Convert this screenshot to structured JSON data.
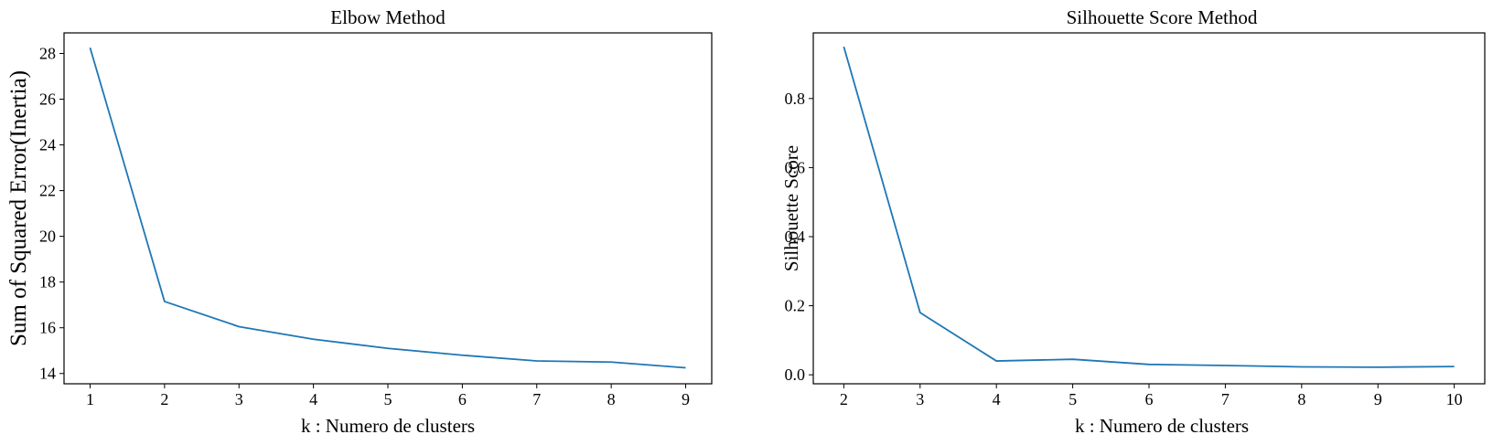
{
  "colors": {
    "line": "#1f77b4",
    "axes": "#000000",
    "background": "#ffffff"
  },
  "chart_data": [
    {
      "type": "line",
      "title": "Elbow Method",
      "xlabel": "k : Numero de clusters",
      "ylabel": "Sum of Squared Error(Inertia)",
      "xlim": [
        0.65,
        9.35
      ],
      "ylim": [
        13.55,
        28.9
      ],
      "xticks": [
        "1",
        "2",
        "3",
        "4",
        "5",
        "6",
        "7",
        "8",
        "9"
      ],
      "yticks": [
        "14",
        "16",
        "18",
        "20",
        "22",
        "24",
        "26",
        "28"
      ],
      "grid": false,
      "series": [
        {
          "x": [
            1,
            2,
            3,
            4,
            5,
            6,
            7,
            8,
            9
          ],
          "values": [
            28.25,
            17.15,
            16.05,
            15.5,
            15.1,
            14.8,
            14.55,
            14.5,
            14.25
          ]
        }
      ]
    },
    {
      "type": "line",
      "title": "Silhouette Score Method",
      "xlabel": "k : Numero de clusters",
      "ylabel": "Silhouette Score",
      "xlim": [
        1.6,
        10.4
      ],
      "ylim": [
        -0.026,
        0.99
      ],
      "xticks": [
        "2",
        "3",
        "4",
        "5",
        "6",
        "7",
        "8",
        "9",
        "10"
      ],
      "yticks": [
        "0.0",
        "0.2",
        "0.4",
        "0.6",
        "0.8"
      ],
      "grid": false,
      "series": [
        {
          "x": [
            2,
            3,
            4,
            5,
            6,
            7,
            8,
            9,
            10
          ],
          "values": [
            0.95,
            0.18,
            0.04,
            0.045,
            0.03,
            0.027,
            0.023,
            0.022,
            0.024
          ]
        }
      ]
    }
  ]
}
